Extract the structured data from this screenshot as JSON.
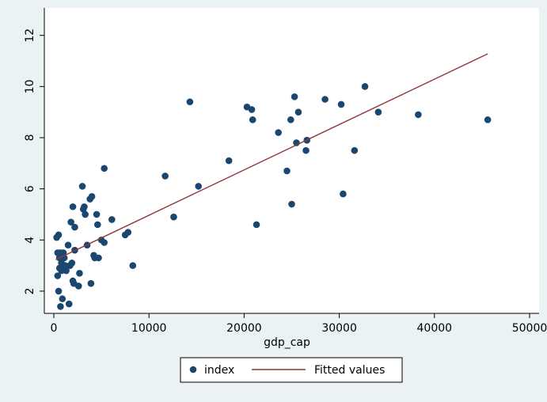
{
  "chart_data": {
    "type": "scatter",
    "title": "",
    "xlabel": "gdp_cap",
    "ylabel": "",
    "xlim": [
      0,
      50000
    ],
    "ylim": [
      1.1,
      12.3
    ],
    "x_ticks": [
      "0",
      "10000",
      "20000",
      "30000",
      "40000",
      "50000"
    ],
    "y_ticks": [
      "2",
      "4",
      "6",
      "8",
      "10",
      "12"
    ],
    "grid": "none",
    "legend_position": "bottom",
    "series": [
      {
        "name": "index",
        "kind": "scatter",
        "color": "#1a476f",
        "x": [
          300,
          400,
          400,
          500,
          500,
          600,
          600,
          700,
          700,
          800,
          800,
          900,
          900,
          1000,
          1000,
          1100,
          1100,
          1200,
          1300,
          1500,
          1600,
          1700,
          1800,
          1900,
          2000,
          2000,
          2100,
          2200,
          2200,
          2600,
          2700,
          3000,
          3100,
          3200,
          3300,
          3500,
          3800,
          3900,
          4000,
          4200,
          4300,
          4500,
          4600,
          4700,
          5000,
          5300,
          5300,
          6100,
          7500,
          7800,
          8300,
          11700,
          12600,
          14300,
          15200,
          18400,
          20300,
          20800,
          20900,
          21300,
          23600,
          24500,
          24900,
          25000,
          25300,
          25500,
          25700,
          26500,
          26600,
          28500,
          30200,
          30400,
          31600,
          32700,
          34100,
          38300,
          45600
        ],
        "y": [
          4.1,
          2.6,
          3.5,
          4.2,
          2.0,
          2.9,
          3.3,
          1.4,
          3.5,
          3.1,
          2.8,
          1.7,
          3.0,
          3.5,
          2.9,
          2.9,
          3.3,
          3.0,
          2.8,
          3.8,
          1.5,
          3.0,
          4.7,
          3.1,
          2.4,
          5.3,
          2.3,
          3.6,
          4.5,
          2.2,
          2.7,
          6.1,
          5.2,
          5.3,
          5.0,
          3.8,
          5.6,
          2.3,
          5.7,
          3.4,
          3.3,
          5.0,
          4.6,
          3.3,
          4.0,
          6.8,
          3.9,
          4.8,
          4.2,
          4.3,
          3.0,
          6.5,
          4.9,
          9.4,
          6.1,
          7.1,
          9.2,
          9.1,
          8.7,
          4.6,
          8.2,
          6.7,
          8.7,
          5.4,
          9.6,
          7.8,
          9.0,
          7.5,
          7.9,
          9.5,
          9.3,
          5.8,
          7.5,
          10.0,
          9.0,
          8.9,
          8.7
        ]
      },
      {
        "name": "Fitted values",
        "kind": "line",
        "color": "#90353b",
        "x": [
          200,
          45600
        ],
        "y": [
          3.23,
          11.28
        ]
      }
    ]
  }
}
